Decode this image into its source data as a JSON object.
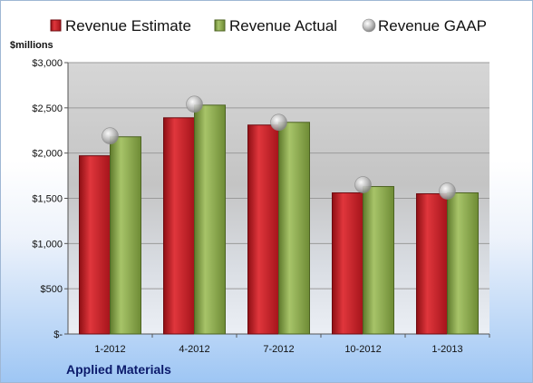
{
  "chart_data": {
    "type": "bar",
    "ylabel": "$millions",
    "company": "Applied Materials",
    "ylim": [
      0,
      3000
    ],
    "yticks": [
      0,
      500,
      1000,
      1500,
      2000,
      2500,
      3000
    ],
    "ytick_labels": [
      "$-",
      "$500",
      "$1,000",
      "$1,500",
      "$2,000",
      "$2,500",
      "$3,000"
    ],
    "categories": [
      "1-2012",
      "4-2012",
      "7-2012",
      "10-2012",
      "1-2013"
    ],
    "series": [
      {
        "name": "Revenue Estimate",
        "kind": "bar",
        "color": "#c81c24",
        "values": [
          1970,
          2390,
          2310,
          1560,
          1550
        ]
      },
      {
        "name": "Revenue Actual",
        "kind": "bar",
        "color": "#8aaa4a",
        "values": [
          2180,
          2530,
          2340,
          1630,
          1560
        ]
      },
      {
        "name": "Revenue GAAP",
        "kind": "marker",
        "color": "#b8b8b8",
        "values": [
          2190,
          2540,
          2340,
          1650,
          1580
        ]
      }
    ],
    "grid": true,
    "legend": "top"
  }
}
